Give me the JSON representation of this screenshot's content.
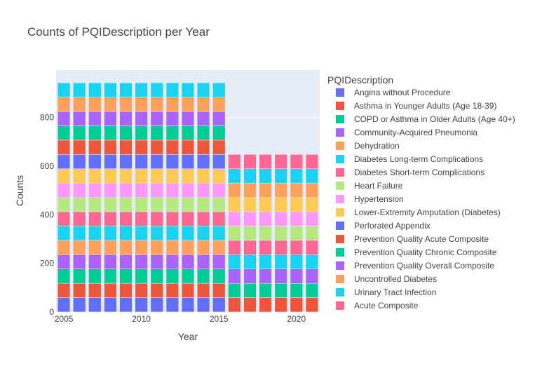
{
  "chart_data": {
    "type": "bar",
    "barmode": "stack",
    "title": "Counts of PQIDescription per Year",
    "xlabel": "Year",
    "ylabel": "Counts",
    "x_ticks": [
      "2005",
      "2010",
      "2015",
      "2020"
    ],
    "y_ticks": [
      "0",
      "200",
      "400",
      "600",
      "800"
    ],
    "ylim": [
      0,
      995
    ],
    "xlim": [
      2004.5,
      2021.5
    ],
    "legend_title": "PQIDescription",
    "legend_position": "right",
    "years": [
      2005,
      2006,
      2007,
      2008,
      2009,
      2010,
      2011,
      2012,
      2013,
      2014,
      2015,
      2016,
      2017,
      2018,
      2019,
      2020,
      2021
    ],
    "series": [
      {
        "name": "Angina without Procedure",
        "color": "#636efa",
        "values": [
          58.9,
          58.9,
          58.9,
          58.9,
          58.9,
          58.9,
          58.9,
          58.9,
          58.9,
          58.9,
          58.9,
          0,
          0,
          0,
          0,
          0,
          0
        ]
      },
      {
        "name": "Asthma in Younger Adults (Age 18-39)",
        "color": "#ef553b",
        "values": [
          58.9,
          58.9,
          58.9,
          58.9,
          58.9,
          58.9,
          58.9,
          58.9,
          58.9,
          58.9,
          58.9,
          58.9,
          58.9,
          58.9,
          58.9,
          58.9,
          58.9
        ]
      },
      {
        "name": "COPD or Asthma in Older Adults (Age 40+)",
        "color": "#00cc96",
        "values": [
          58.9,
          58.9,
          58.9,
          58.9,
          58.9,
          58.9,
          58.9,
          58.9,
          58.9,
          58.9,
          58.9,
          58.9,
          58.9,
          58.9,
          58.9,
          58.9,
          58.9
        ]
      },
      {
        "name": "Community-Acquired Pneumonia",
        "color": "#ab63fa",
        "values": [
          58.9,
          58.9,
          58.9,
          58.9,
          58.9,
          58.9,
          58.9,
          58.9,
          58.9,
          58.9,
          58.9,
          58.9,
          58.9,
          58.9,
          58.9,
          58.9,
          58.9
        ]
      },
      {
        "name": "Dehydration",
        "color": "#ffa15a",
        "values": [
          58.9,
          58.9,
          58.9,
          58.9,
          58.9,
          58.9,
          58.9,
          58.9,
          58.9,
          58.9,
          58.9,
          0,
          0,
          0,
          0,
          0,
          0
        ]
      },
      {
        "name": "Diabetes Long-term Complications",
        "color": "#19d3f3",
        "values": [
          58.9,
          58.9,
          58.9,
          58.9,
          58.9,
          58.9,
          58.9,
          58.9,
          58.9,
          58.9,
          58.9,
          58.9,
          58.9,
          58.9,
          58.9,
          58.9,
          58.9
        ]
      },
      {
        "name": "Diabetes Short-term Complications",
        "color": "#ff6692",
        "values": [
          58.9,
          58.9,
          58.9,
          58.9,
          58.9,
          58.9,
          58.9,
          58.9,
          58.9,
          58.9,
          58.9,
          58.9,
          58.9,
          58.9,
          58.9,
          58.9,
          58.9
        ]
      },
      {
        "name": "Heart Failure",
        "color": "#b6e880",
        "values": [
          58.9,
          58.9,
          58.9,
          58.9,
          58.9,
          58.9,
          58.9,
          58.9,
          58.9,
          58.9,
          58.9,
          58.9,
          58.9,
          58.9,
          58.9,
          58.9,
          58.9
        ]
      },
      {
        "name": "Hypertension",
        "color": "#ff97ff",
        "values": [
          58.9,
          58.9,
          58.9,
          58.9,
          58.9,
          58.9,
          58.9,
          58.9,
          58.9,
          58.9,
          58.9,
          58.9,
          58.9,
          58.9,
          58.9,
          58.9,
          58.9
        ]
      },
      {
        "name": "Lower-Extremity Amputation (Diabetes)",
        "color": "#fecb52",
        "values": [
          58.9,
          58.9,
          58.9,
          58.9,
          58.9,
          58.9,
          58.9,
          58.9,
          58.9,
          58.9,
          58.9,
          58.9,
          58.9,
          58.9,
          58.9,
          58.9,
          58.9
        ]
      },
      {
        "name": "Perforated Appendix",
        "color": "#636efa",
        "values": [
          58.9,
          58.9,
          58.9,
          58.9,
          58.9,
          58.9,
          58.9,
          58.9,
          58.9,
          58.9,
          58.9,
          0,
          0,
          0,
          0,
          0,
          0
        ]
      },
      {
        "name": "Prevention Quality Acute Composite",
        "color": "#ef553b",
        "values": [
          58.9,
          58.9,
          58.9,
          58.9,
          58.9,
          58.9,
          58.9,
          58.9,
          58.9,
          58.9,
          58.9,
          0,
          0,
          0,
          0,
          0,
          0
        ]
      },
      {
        "name": "Prevention Quality Chronic Composite",
        "color": "#00cc96",
        "values": [
          58.9,
          58.9,
          58.9,
          58.9,
          58.9,
          58.9,
          58.9,
          58.9,
          58.9,
          58.9,
          58.9,
          0,
          0,
          0,
          0,
          0,
          0
        ]
      },
      {
        "name": "Prevention Quality Overall Composite",
        "color": "#ab63fa",
        "values": [
          58.9,
          58.9,
          58.9,
          58.9,
          58.9,
          58.9,
          58.9,
          58.9,
          58.9,
          58.9,
          58.9,
          0,
          0,
          0,
          0,
          0,
          0
        ]
      },
      {
        "name": "Uncontrolled Diabetes",
        "color": "#ffa15a",
        "values": [
          58.9,
          58.9,
          58.9,
          58.9,
          58.9,
          58.9,
          58.9,
          58.9,
          58.9,
          58.9,
          58.9,
          58.9,
          58.9,
          58.9,
          58.9,
          58.9,
          58.9
        ]
      },
      {
        "name": "Urinary Tract Infection",
        "color": "#19d3f3",
        "values": [
          58.9,
          58.9,
          58.9,
          58.9,
          58.9,
          58.9,
          58.9,
          58.9,
          58.9,
          58.9,
          58.9,
          58.9,
          58.9,
          58.9,
          58.9,
          58.9,
          58.9
        ]
      },
      {
        "name": "Acute Composite",
        "color": "#ff6692",
        "values": [
          0,
          0,
          0,
          0,
          0,
          0,
          0,
          0,
          0,
          0,
          0,
          58.9,
          58.9,
          58.9,
          58.9,
          58.9,
          58.9
        ]
      }
    ]
  }
}
